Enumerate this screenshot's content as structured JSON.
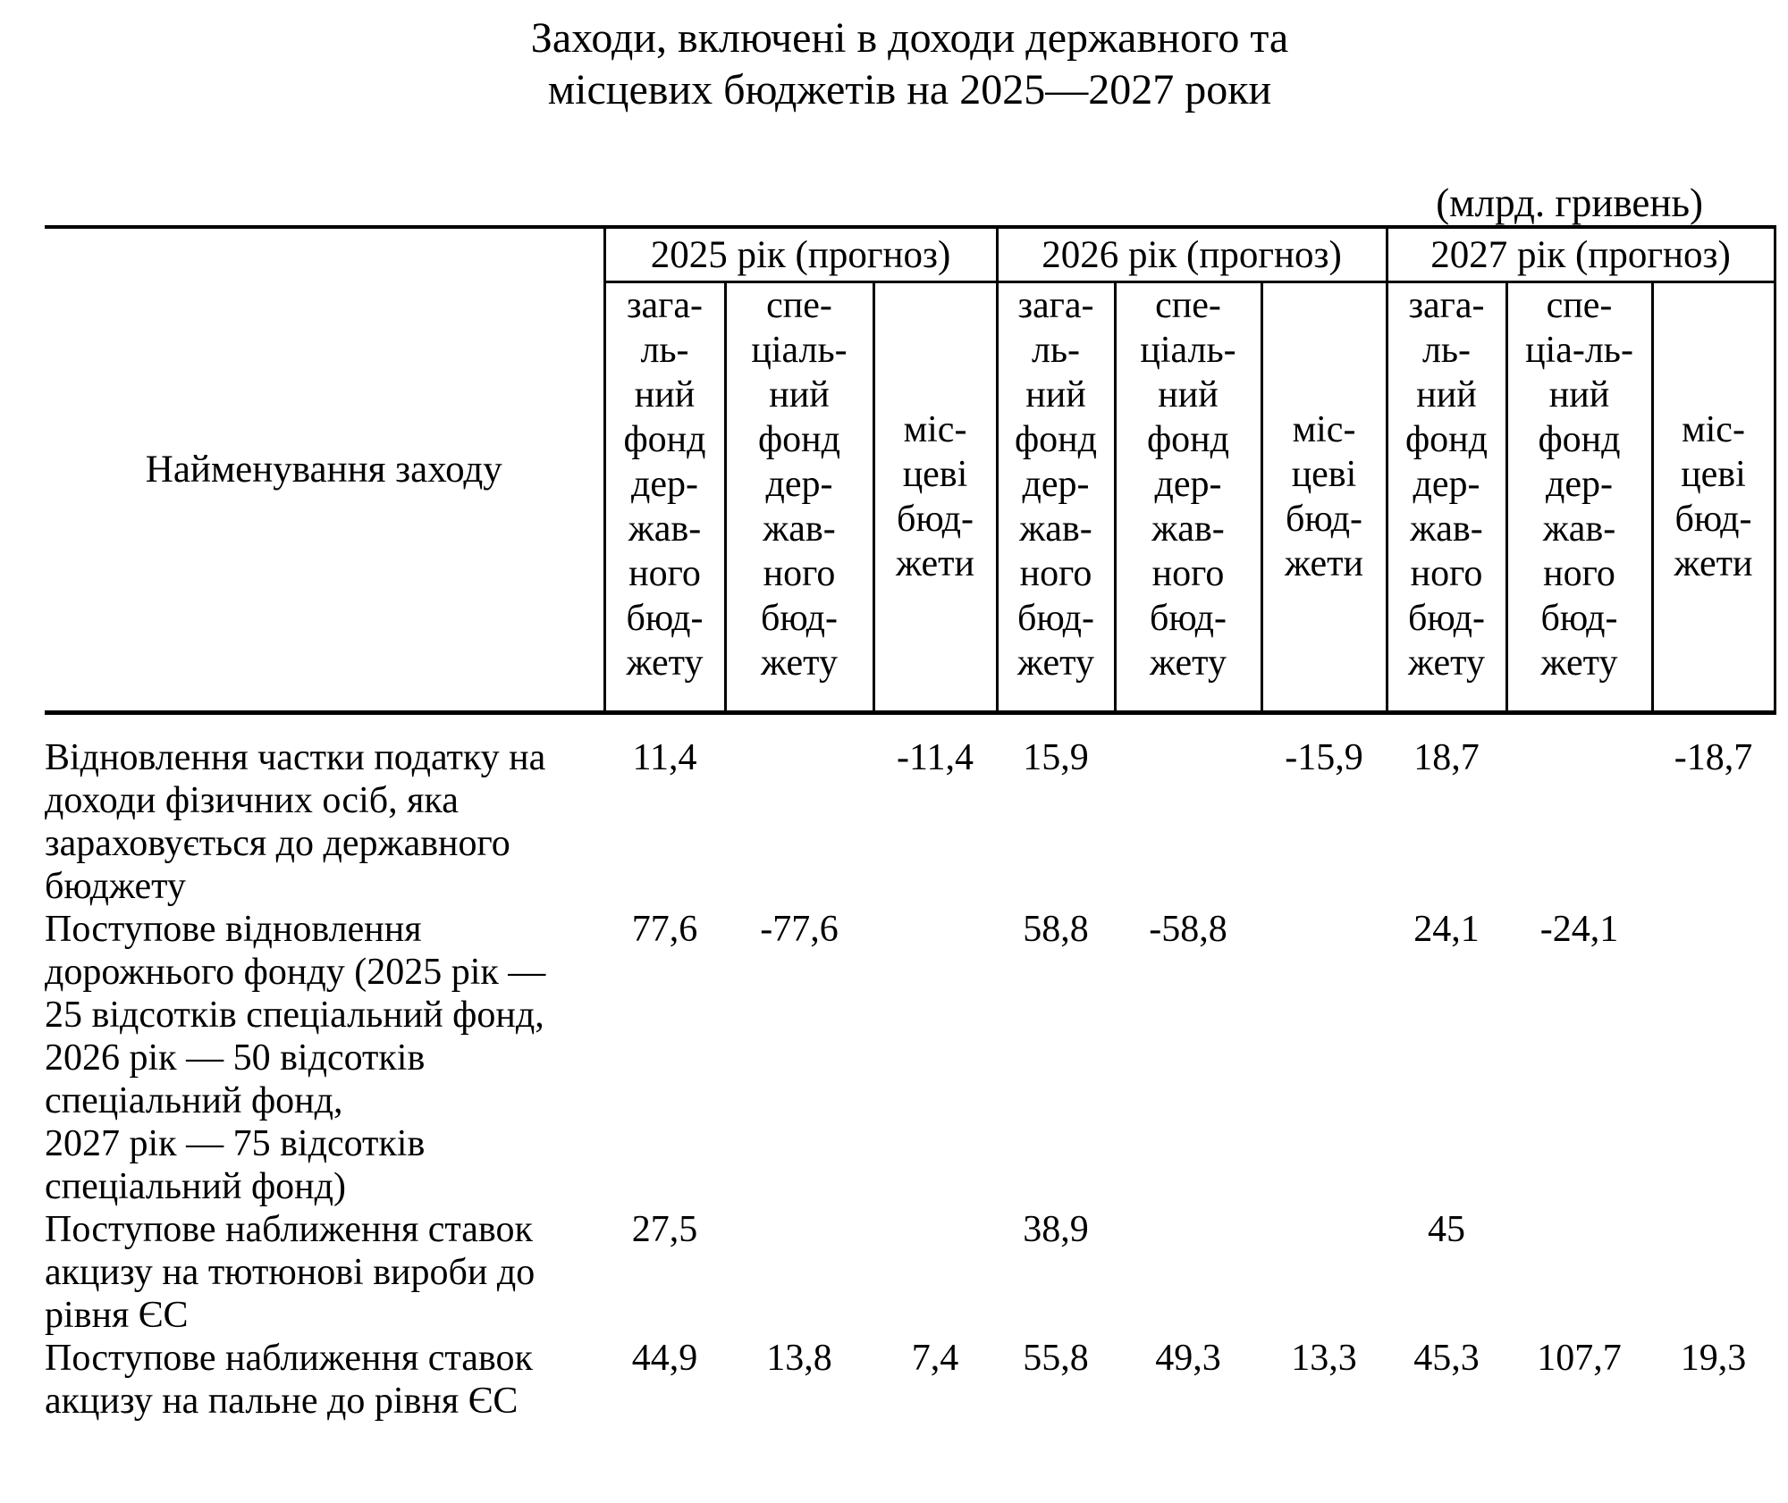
{
  "colors": {
    "ink": "#000000",
    "background": "#ffffff"
  },
  "title": "Заходи, включені в доходи державного та\nмісцевих бюджетів на 2025—2027 роки",
  "unit_label": "(млрд. гривень)",
  "table": {
    "name_header": "Найменування заходу",
    "year_groups": [
      {
        "label": "2025 рік (прогноз)",
        "columns": [
          "зага-\nль-\nний\nфонд\nдер-\nжав-\nного\nбюд-\nжету",
          "спе-\nціаль-\nний\nфонд\nдер-\nжав-\nного\nбюд-\nжету",
          "міс-\nцеві\nбюд-\nжети"
        ]
      },
      {
        "label": "2026 рік (прогноз)",
        "columns": [
          "зага-\nль-\nний\nфонд\nдер-\nжав-\nного\nбюд-\nжету",
          "спе-\nціаль-\nний\nфонд\nдер-\nжав-\nного\nбюд-\nжету",
          "міс-\nцеві\nбюд-\nжети"
        ]
      },
      {
        "label": "2027 рік (прогноз)",
        "columns": [
          "зага-\nль-\nний\nфонд\nдер-\nжав-\nного\nбюд-\nжету",
          "спе-\nціа-ль-\nний\nфонд\nдер-\nжав-\nного\nбюд-\nжету",
          "міс-\nцеві\nбюд-\nжети"
        ]
      }
    ],
    "rows": [
      {
        "name": "Відновлення частки податку на\nдоходи фізичних осіб, яка\nзараховується до державного\nбюджету",
        "values": [
          "11,4",
          "",
          "-11,4",
          "15,9",
          "",
          "-15,9",
          "18,7",
          "",
          "-18,7"
        ]
      },
      {
        "name": "Поступове відновлення\nдорожнього фонду (2025 рік —\n25 відсотків спеціальний фонд,\n2026 рік — 50 відсотків\nспеціальний фонд,\n2027 рік — 75 відсотків\nспеціальний фонд)",
        "values": [
          "77,6",
          "-77,6",
          "",
          "58,8",
          "-58,8",
          "",
          "24,1",
          "-24,1",
          ""
        ]
      },
      {
        "name": "Поступове наближення ставок\nакцизу на тютюнові вироби до\nрівня ЄС",
        "values": [
          "27,5",
          "",
          "",
          "38,9",
          "",
          "",
          "45",
          "",
          ""
        ]
      },
      {
        "name": "Поступове наближення ставок\nакцизу на пальне до рівня ЄС",
        "values": [
          "44,9",
          "13,8",
          "7,4",
          "55,8",
          "49,3",
          "13,3",
          "45,3",
          "107,7",
          "19,3"
        ]
      }
    ]
  }
}
